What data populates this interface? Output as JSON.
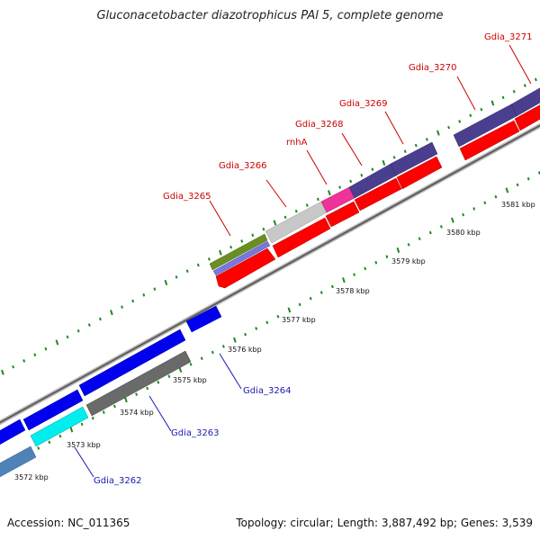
{
  "title": "Gluconacetobacter diazotrophicus PAl 5, complete genome",
  "footer": {
    "accession": "Accession: NC_011365",
    "stats": "Topology: circular; Length: 3,887,492 bp; Genes: 3,539"
  },
  "colors": {
    "backbone": "#7a7a7a",
    "tick": "#1f8a1f",
    "top_label": "#cc0000",
    "bottom_label": "#1a1ab0"
  },
  "scale_labels": [
    "3572 kbp",
    "3573 kbp",
    "3574 kbp",
    "3575 kbp",
    "3576 kbp",
    "3577 kbp",
    "3578 kbp",
    "3579 kbp",
    "3580 kbp",
    "3581 kbp"
  ],
  "top_gene_labels": [
    "Gdia_3265",
    "Gdia_3266",
    "rnhA",
    "Gdia_3268",
    "Gdia_3269",
    "Gdia_3270",
    "Gdia_3271"
  ],
  "bottom_gene_labels": [
    "Gdia_3262",
    "Gdia_3263",
    "Gdia_3264"
  ]
}
